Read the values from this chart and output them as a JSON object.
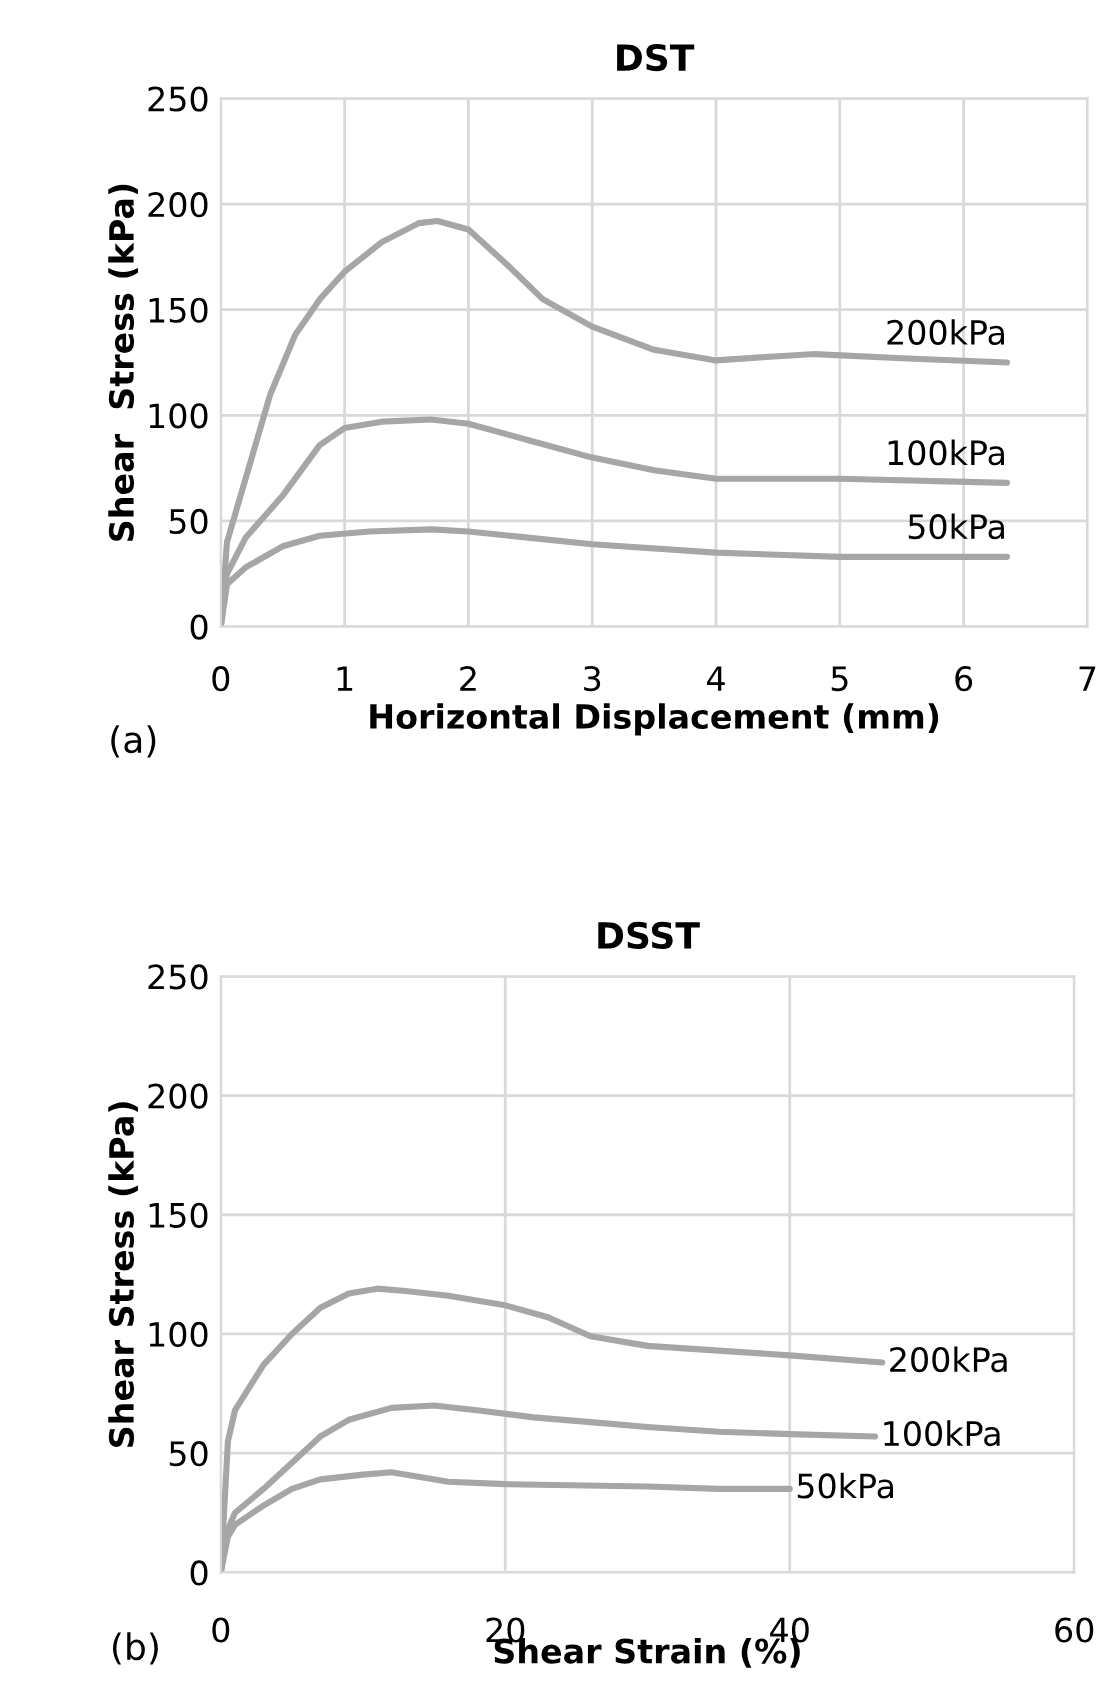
{
  "chart_data": [
    {
      "type": "line",
      "title": "DST",
      "xlabel": "Horizontal Displacement (mm)",
      "ylabel": "Shear  Stress (kPa)",
      "annotations": [
        "(a)"
      ],
      "xlim": [
        0,
        7
      ],
      "xticks": [
        0,
        1,
        2,
        3,
        4,
        5,
        6,
        7
      ],
      "ylim": [
        0,
        250
      ],
      "yticks": [
        0,
        50,
        100,
        150,
        200,
        250
      ],
      "grid": true,
      "marker": "none",
      "line_style": "solid",
      "series": [
        {
          "name": "200kPa",
          "color": "#a6a6a6",
          "x": [
            0,
            0.05,
            0.2,
            0.4,
            0.6,
            0.8,
            1,
            1.3,
            1.6,
            1.75,
            2,
            2.3,
            2.6,
            3,
            3.5,
            4,
            4.5,
            4.8,
            5.5,
            6.35
          ],
          "values": [
            0,
            40,
            70,
            110,
            138,
            155,
            168,
            182,
            191,
            192,
            188,
            172,
            155,
            142,
            131,
            126,
            128,
            129,
            127,
            125
          ]
        },
        {
          "name": "100kPa",
          "color": "#a6a6a6",
          "x": [
            0,
            0.05,
            0.2,
            0.5,
            0.8,
            1,
            1.3,
            1.7,
            2,
            2.5,
            3,
            3.5,
            4,
            5,
            6.35
          ],
          "values": [
            0,
            25,
            42,
            62,
            86,
            94,
            97,
            98,
            96,
            88,
            80,
            74,
            70,
            70,
            68
          ]
        },
        {
          "name": "50kPa",
          "color": "#a6a6a6",
          "x": [
            0,
            0.05,
            0.2,
            0.5,
            0.8,
            1.2,
            1.7,
            2,
            2.5,
            3,
            4,
            5,
            6.35
          ],
          "values": [
            0,
            20,
            28,
            38,
            43,
            45,
            46,
            45,
            42,
            39,
            35,
            33,
            33
          ]
        }
      ]
    },
    {
      "type": "line",
      "title": "DSST",
      "xlabel": "Shear Strain (%)",
      "ylabel": "Shear Stress (kPa)",
      "annotations": [
        "(b)"
      ],
      "xlim": [
        0,
        60
      ],
      "xticks": [
        0,
        20,
        40,
        60
      ],
      "ylim": [
        0,
        250
      ],
      "yticks": [
        0,
        50,
        100,
        150,
        200,
        250
      ],
      "grid": true,
      "marker": "none",
      "line_style": "solid",
      "series": [
        {
          "name": "200kPa",
          "color": "#a6a6a6",
          "x": [
            0,
            0.5,
            1,
            3,
            5,
            7,
            9,
            11,
            13,
            16,
            20,
            23,
            26,
            30,
            35,
            40,
            46.5
          ],
          "values": [
            0,
            55,
            68,
            87,
            100,
            111,
            117,
            119,
            118,
            116,
            112,
            107,
            99,
            95,
            93,
            91,
            88
          ]
        },
        {
          "name": "100kPa",
          "color": "#a6a6a6",
          "x": [
            0,
            0.5,
            1,
            3,
            5,
            7,
            9,
            12,
            15,
            18,
            22,
            26,
            30,
            35,
            40,
            46
          ],
          "values": [
            0,
            18,
            25,
            35,
            46,
            57,
            64,
            69,
            70,
            68,
            65,
            63,
            61,
            59,
            58,
            57
          ]
        },
        {
          "name": "50kPa",
          "color": "#a6a6a6",
          "x": [
            0,
            0.5,
            1,
            3,
            5,
            7,
            10,
            12,
            14,
            16,
            20,
            30,
            35,
            40
          ],
          "values": [
            0,
            15,
            20,
            28,
            35,
            39,
            41,
            42,
            40,
            38,
            37,
            36,
            35,
            35
          ]
        }
      ]
    }
  ]
}
